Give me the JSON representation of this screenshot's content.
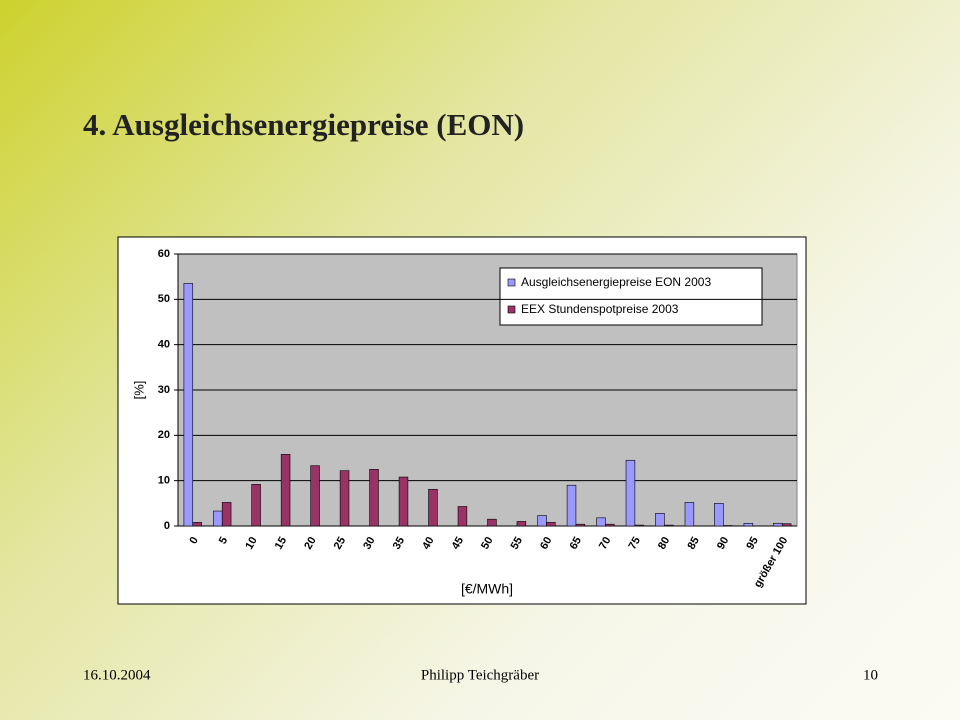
{
  "slide": {
    "title": "4. Ausgleichsenergiepreise (EON)",
    "footer_date": "16.10.2004",
    "footer_author": "Philipp Teichgräber",
    "page_number": "10"
  },
  "chart_data": {
    "type": "bar",
    "y_label": "[%]",
    "x_label": "[€/MWh]",
    "categories": [
      "0",
      "5",
      "10",
      "15",
      "20",
      "25",
      "30",
      "35",
      "40",
      "45",
      "50",
      "55",
      "60",
      "65",
      "70",
      "75",
      "80",
      "85",
      "90",
      "95",
      "größer 100"
    ],
    "series": [
      {
        "name": "Ausgleichsenergiepreise EON 2003",
        "color": "#9999ff",
        "values": [
          53.5,
          3.3,
          0,
          0,
          0,
          0,
          0,
          0,
          0,
          0,
          0,
          0,
          2.3,
          9,
          1.8,
          14.5,
          2.8,
          5.2,
          5,
          0.6,
          0.6
        ]
      },
      {
        "name": "EEX Stundenspotpreise 2003",
        "color": "#993366",
        "values": [
          0.8,
          5.2,
          9.2,
          15.8,
          13.3,
          12.2,
          12.5,
          10.8,
          8.1,
          4.3,
          1.5,
          1,
          0.8,
          0.4,
          0.4,
          0.2,
          0.2,
          0,
          0.1,
          0,
          0.5
        ]
      }
    ],
    "ylim": [
      0,
      60
    ],
    "yticks": [
      0,
      10,
      20,
      30,
      40,
      50,
      60
    ],
    "grid": true,
    "legend": "top-right"
  }
}
